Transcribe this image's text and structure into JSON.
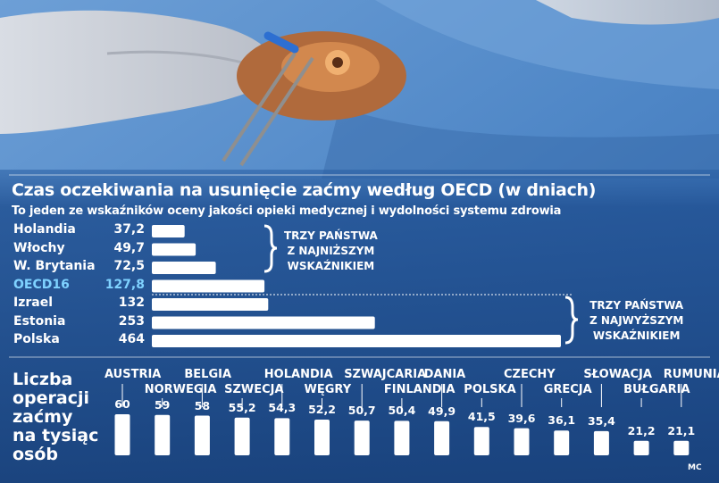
{
  "title": "Czas oczekiwania na usunięcie zaćmy według OECD (w dniach)",
  "subtitle": "To jeden ze wskaźników oceny jakości opieki medycznej i wydolności systemu zdrowia",
  "chart_data": [
    {
      "type": "bar",
      "orientation": "horizontal",
      "title": "Czas oczekiwania na usunięcie zaćmy według OECD (w dniach)",
      "subtitle": "To jeden ze wskaźników oceny jakości opieki medycznej i wydolności systemu zdrowia",
      "categories": [
        "Holandia",
        "Włochy",
        "W. Brytania",
        "OECD16",
        "Izrael",
        "Estonia",
        "Polska"
      ],
      "values": [
        37.2,
        49.7,
        72.5,
        127.8,
        132,
        253,
        464
      ],
      "value_labels": [
        "37,2",
        "49,7",
        "72,5",
        "127,8",
        "132",
        "253",
        "464"
      ],
      "highlight": "OECD16",
      "annotations": [
        {
          "text": [
            "TRZY PAŃSTWA",
            "Z NAJNIŻSZYM",
            "WSKAŹNIKIEM"
          ],
          "applies_to": [
            "Holandia",
            "Włochy",
            "W. Brytania"
          ]
        },
        {
          "text": [
            "TRZY PAŃSTWA",
            "Z NAJWYŻSZYM",
            "WSKAŹNIKIEM"
          ],
          "applies_to": [
            "Izrael",
            "Estonia",
            "Polska"
          ]
        }
      ]
    },
    {
      "type": "bar",
      "title": [
        "Liczba",
        "operacji",
        "zaćmy",
        "na tysiąc",
        "osób"
      ],
      "categories": [
        "AUSTRIA",
        "NORWEGIA",
        "BELGIA",
        "SZWECJA",
        "HOLANDIA",
        "WĘGRY",
        "SZWAJCARIA",
        "FINLANDIA",
        "DANIA",
        "POLSKA",
        "CZECHY",
        "GRECJA",
        "SŁOWACJA",
        "BUŁGARIA",
        "RUMUNIA"
      ],
      "values": [
        60,
        59,
        58,
        55.2,
        54.3,
        52.2,
        50.7,
        50.4,
        49.9,
        41.5,
        39.6,
        36.1,
        35.4,
        21.2,
        21.1
      ],
      "value_labels": [
        "60",
        "59",
        "58",
        "55,2",
        "54,3",
        "52,2",
        "50,7",
        "50,4",
        "49,9",
        "41,5",
        "39,6",
        "36,1",
        "35,4",
        "21,2",
        "21,1"
      ]
    }
  ],
  "colors": {
    "bar": "#ffffff",
    "highlight": "#7fd2ff",
    "text": "#ffffff",
    "overlay": "#163e78"
  },
  "credit": "MC"
}
